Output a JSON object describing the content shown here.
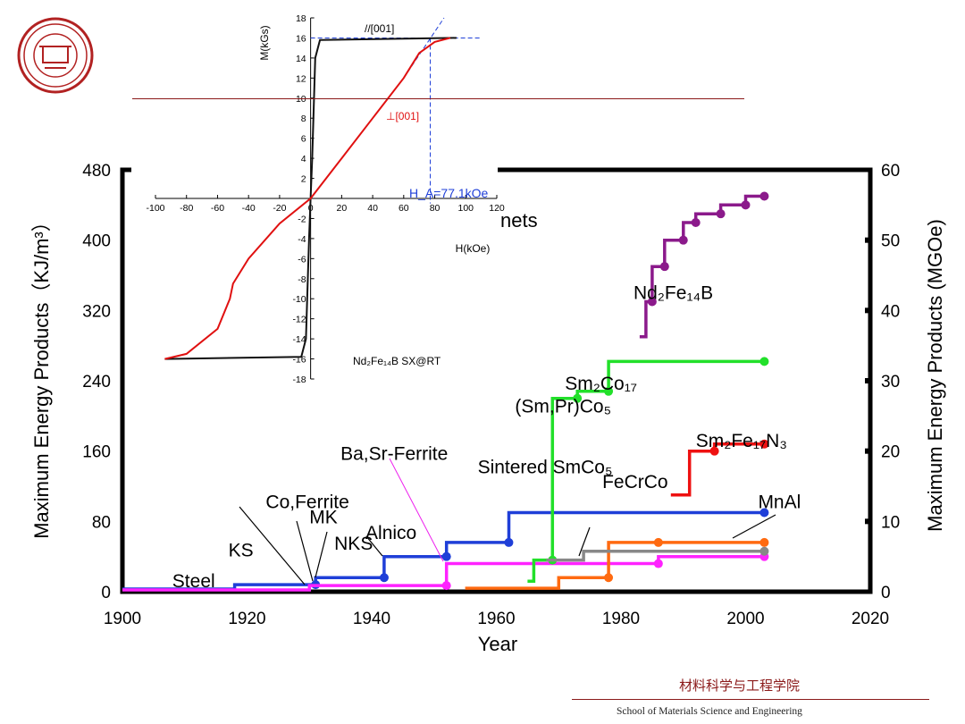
{
  "footer": {
    "school_cn": "材料科学与工程学院",
    "school_en": "School of Materials Science and Engineering"
  },
  "logo": {
    "icon": "university-seal-icon",
    "color": "#b22222"
  },
  "chart_data": [
    {
      "type": "line",
      "title": "",
      "xlabel": "Year",
      "ylabel": "Maximum Energy Products（KJ/m³）",
      "ylabel_right": "Maximum Energy Products (MGOe)",
      "xlim": [
        1900,
        2020
      ],
      "ylim": [
        0,
        480
      ],
      "ylim_right": [
        0,
        60
      ],
      "x_ticks": [
        "1900",
        "1920",
        "1940",
        "1960",
        "1980",
        "2000",
        "2020"
      ],
      "y_ticks": [
        "0",
        "80",
        "160",
        "240",
        "320",
        "400",
        "480"
      ],
      "y_ticks_right": [
        "0",
        "10",
        "20",
        "30",
        "40",
        "50",
        "60"
      ],
      "legend_heading": "nets",
      "annotations": [
        {
          "text": "Steel",
          "x": 1908,
          "y": 5
        },
        {
          "text": "KS",
          "x": 1917,
          "y": 40
        },
        {
          "text": "Co,Ferrite",
          "x": 1923,
          "y": 95
        },
        {
          "text": "MK",
          "x": 1930,
          "y": 78
        },
        {
          "text": "NKS",
          "x": 1934,
          "y": 48
        },
        {
          "text": "Alnico",
          "x": 1939,
          "y": 60
        },
        {
          "text": "Ba,Sr-Ferrite",
          "x": 1935,
          "y": 150
        },
        {
          "text": "Sintered SmCo₅",
          "x": 1957,
          "y": 135
        },
        {
          "text": "(Sm,Pr)Co₅",
          "x": 1963,
          "y": 204
        },
        {
          "text": "Sm₂Co₁₇",
          "x": 1971,
          "y": 230
        },
        {
          "text": "Nd₂Fe₁₄B",
          "x": 1982,
          "y": 333
        },
        {
          "text": "Sm₂Fe₁₇N₃",
          "x": 1992,
          "y": 165
        },
        {
          "text": "FeCrCo",
          "x": 1977,
          "y": 118
        },
        {
          "text": "MnAl",
          "x": 2002,
          "y": 95
        }
      ],
      "series": [
        {
          "color": "#1f3fd8",
          "points": [
            [
              1900,
              3
            ],
            [
              1918,
              3
            ],
            [
              1918,
              8
            ],
            [
              1931,
              8
            ],
            [
              1931,
              16
            ],
            [
              1942,
              16
            ],
            [
              1942,
              40
            ],
            [
              1952,
              40
            ],
            [
              1952,
              56
            ],
            [
              1962,
              56
            ],
            [
              1962,
              90
            ],
            [
              2003,
              90
            ]
          ]
        },
        {
          "color": "#ff22ff",
          "points": [
            [
              1900,
              2
            ],
            [
              1930,
              2
            ],
            [
              1930,
              7
            ],
            [
              1952,
              7
            ],
            [
              1952,
              32
            ],
            [
              1986,
              32
            ],
            [
              1986,
              40
            ],
            [
              2003,
              40
            ]
          ]
        },
        {
          "color": "#22e02a",
          "points": [
            [
              1965,
              12
            ],
            [
              1966,
              12
            ],
            [
              1966,
              36
            ],
            [
              1969,
              36
            ],
            [
              1969,
              220
            ],
            [
              1973,
              220
            ],
            [
              1973,
              228
            ],
            [
              1978,
              228
            ],
            [
              1978,
              262
            ],
            [
              2003,
              262
            ]
          ]
        },
        {
          "color": "#ff6a10",
          "points": [
            [
              1955,
              4
            ],
            [
              1970,
              4
            ],
            [
              1970,
              16
            ],
            [
              1978,
              16
            ],
            [
              1978,
              56
            ],
            [
              1986,
              56
            ],
            [
              1986,
              56
            ],
            [
              2003,
              56
            ]
          ]
        },
        {
          "color": "#888888",
          "points": [
            [
              1968,
              36
            ],
            [
              1974,
              36
            ],
            [
              1974,
              46
            ],
            [
              2003,
              46
            ]
          ]
        },
        {
          "color": "#8b1a8b",
          "points": [
            [
              1983,
              290
            ],
            [
              1984,
              290
            ],
            [
              1984,
              330
            ],
            [
              1985,
              330
            ],
            [
              1985,
              370
            ],
            [
              1987,
              370
            ],
            [
              1987,
              400
            ],
            [
              1990,
              400
            ],
            [
              1990,
              420
            ],
            [
              1992,
              420
            ],
            [
              1992,
              430
            ],
            [
              1996,
              430
            ],
            [
              1996,
              440
            ],
            [
              2000,
              440
            ],
            [
              2000,
              450
            ],
            [
              2003,
              450
            ]
          ]
        },
        {
          "color": "#ee1111",
          "points": [
            [
              1988,
              110
            ],
            [
              1991,
              110
            ],
            [
              1991,
              160
            ],
            [
              1995,
              160
            ],
            [
              1995,
              168
            ],
            [
              2003,
              168
            ]
          ]
        }
      ]
    },
    {
      "type": "line",
      "title": "",
      "xlabel": "H(kOe)",
      "ylabel": "M(kGs)",
      "xlim": [
        -100,
        120
      ],
      "ylim": [
        -18,
        18
      ],
      "x_ticks": [
        "-100",
        "-80",
        "-60",
        "-40",
        "-20",
        "0",
        "20",
        "40",
        "60",
        "80",
        "100",
        "120"
      ],
      "y_ticks": [
        "-18",
        "-16",
        "-14",
        "-12",
        "-10",
        "-8",
        "-6",
        "-4",
        "-2",
        "2",
        "4",
        "6",
        "8",
        "10",
        "12",
        "14",
        "16",
        "18"
      ],
      "x_ticks_values": [
        -100,
        -80,
        -60,
        -40,
        -20,
        0,
        20,
        40,
        60,
        80,
        100,
        120
      ],
      "y_ticks_values": [
        -18,
        -16,
        -14,
        -12,
        -10,
        -8,
        -6,
        -4,
        -2,
        2,
        4,
        6,
        8,
        10,
        12,
        14,
        16,
        18
      ],
      "annotation_parallel": "//[001]",
      "annotation_perp": "⊥[001]",
      "annotation_ha": "H_A=77.1kOe",
      "sample_label": "Nd₂Fe₁₄B SX@RT",
      "series": [
        {
          "color": "#111111",
          "points": [
            [
              -94,
              -16
            ],
            [
              -6,
              -15.8
            ],
            [
              -3,
              -14
            ],
            [
              -1,
              -4
            ],
            [
              0,
              0
            ],
            [
              1,
              4
            ],
            [
              3,
              14
            ],
            [
              6,
              15.8
            ],
            [
              94,
              16
            ]
          ]
        },
        {
          "color": "#e01010",
          "points": [
            [
              -94,
              -16
            ],
            [
              -80,
              -15.5
            ],
            [
              -60,
              -13
            ],
            [
              -52,
              -10
            ],
            [
              -50,
              -8.5
            ],
            [
              -40,
              -6
            ],
            [
              -20,
              -2.5
            ],
            [
              0,
              0
            ],
            [
              20,
              4
            ],
            [
              40,
              8
            ],
            [
              60,
              12
            ],
            [
              70,
              14.5
            ],
            [
              80,
              15.6
            ],
            [
              90,
              16
            ]
          ]
        }
      ],
      "guide_color": "#1f3fd8",
      "ha_value": 77.1
    }
  ]
}
